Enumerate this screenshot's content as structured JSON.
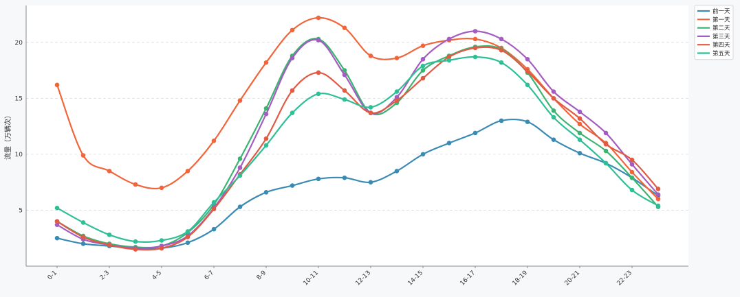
{
  "chart_data": {
    "type": "line",
    "ylabel": "流量（万辆次）",
    "xlabel": "",
    "title": "",
    "ylim": [
      0,
      23.3
    ],
    "yticks": [
      5,
      10,
      15,
      20
    ],
    "categories": [
      "0-1",
      "1-2",
      "2-3",
      "3-4",
      "4-5",
      "5-6",
      "6-7",
      "7-8",
      "8-9",
      "9-10",
      "10-11",
      "11-12",
      "12-13",
      "13-14",
      "14-15",
      "15-16",
      "16-17",
      "17-18",
      "18-19",
      "19-20",
      "20-21",
      "21-22",
      "22-23",
      "23-24"
    ],
    "xtick_labels": [
      "0-1",
      "2-3",
      "4-5",
      "6-7",
      "8-9",
      "10-11",
      "12-13",
      "14-15",
      "16-17",
      "18-19",
      "20-21",
      "22-23"
    ],
    "grid": "horizontal dashed",
    "legend_position": "top-right",
    "series": [
      {
        "name": "前一天",
        "color": "#3a8bb4",
        "values": [
          2.5,
          2.0,
          1.8,
          1.6,
          1.6,
          2.1,
          3.3,
          5.3,
          6.6,
          7.2,
          7.8,
          7.9,
          7.5,
          8.5,
          10.0,
          11.0,
          11.9,
          13.0,
          12.9,
          11.3,
          10.1,
          9.2,
          7.9,
          6.3
        ]
      },
      {
        "name": "第一天",
        "color": "#f0653a",
        "values": [
          16.2,
          9.9,
          8.5,
          7.3,
          7.0,
          8.5,
          11.2,
          14.8,
          18.2,
          21.1,
          22.2,
          21.3,
          18.8,
          18.6,
          19.7,
          20.2,
          20.3,
          19.5,
          17.6,
          15.0,
          12.7,
          11.0,
          8.4,
          6.0
        ]
      },
      {
        "name": "第二天",
        "color": "#3cb371",
        "values": [
          4.0,
          2.7,
          2.0,
          1.7,
          1.8,
          3.0,
          5.5,
          9.6,
          14.1,
          18.8,
          20.3,
          17.5,
          13.7,
          14.6,
          17.5,
          18.8,
          19.6,
          19.4,
          17.3,
          13.9,
          11.9,
          10.3,
          7.9,
          5.3
        ]
      },
      {
        "name": "第三天",
        "color": "#a45cc0",
        "values": [
          3.7,
          2.4,
          1.9,
          1.6,
          1.8,
          2.7,
          5.2,
          8.8,
          13.6,
          18.6,
          20.2,
          17.1,
          13.7,
          15.1,
          18.5,
          20.3,
          21.0,
          20.3,
          18.5,
          15.6,
          13.8,
          11.9,
          9.1,
          6.4
        ]
      },
      {
        "name": "第四天",
        "color": "#e05a44",
        "values": [
          4.0,
          2.6,
          1.9,
          1.5,
          1.6,
          2.6,
          5.1,
          8.2,
          11.4,
          15.7,
          17.3,
          15.7,
          13.7,
          14.8,
          16.8,
          18.7,
          19.5,
          19.3,
          17.4,
          15.0,
          13.2,
          10.9,
          9.5,
          6.9
        ]
      },
      {
        "name": "第五天",
        "color": "#2fbf96",
        "values": [
          5.2,
          3.9,
          2.8,
          2.2,
          2.3,
          3.1,
          5.7,
          8.1,
          10.8,
          13.7,
          15.4,
          14.9,
          14.2,
          15.6,
          17.9,
          18.4,
          18.7,
          18.2,
          16.2,
          13.3,
          11.3,
          9.2,
          6.8,
          5.4
        ]
      }
    ]
  }
}
